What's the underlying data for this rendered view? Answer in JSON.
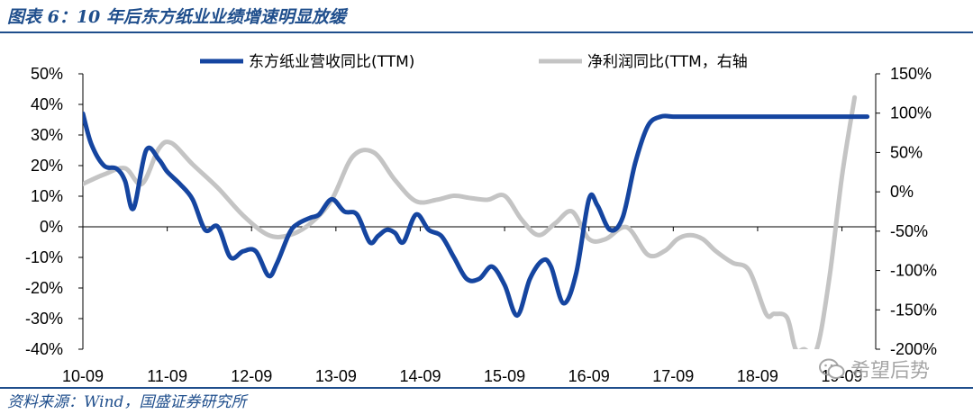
{
  "figure": {
    "title": "图表 6：10 年后东方纸业业绩增速明显放缓",
    "source": "资料来源：Wind，国盛证券研究所",
    "watermark": "希望后势"
  },
  "chart_data": {
    "type": "line",
    "title": "",
    "x_tick_labels": [
      "10-09",
      "11-09",
      "12-09",
      "13-09",
      "14-09",
      "15-09",
      "16-09",
      "17-09",
      "18-09",
      "19-09"
    ],
    "left_axis": {
      "ticks": [
        "50%",
        "40%",
        "30%",
        "20%",
        "10%",
        "0%",
        "-10%",
        "-20%",
        "-30%",
        "-40%"
      ],
      "ylim": [
        -40,
        50
      ]
    },
    "right_axis": {
      "ticks": [
        "150%",
        "100%",
        "50%",
        "0%",
        "-50%",
        "-100%",
        "-150%",
        "-200%"
      ],
      "ylim": [
        -200,
        150
      ]
    },
    "legend_position": "top-center",
    "colors": {
      "revenue": "#1545a0",
      "profit": "#c4c4c4"
    },
    "series": [
      {
        "name": "东方纸业营收同比(TTM)",
        "axis": "left",
        "x": [
          0,
          0.1,
          0.25,
          0.4,
          0.5,
          0.6,
          0.75,
          0.9,
          1.0,
          1.15,
          1.3,
          1.45,
          1.6,
          1.75,
          1.9,
          2.05,
          2.2,
          2.3,
          2.45,
          2.55,
          2.7,
          2.8,
          2.95,
          3.1,
          3.25,
          3.4,
          3.5,
          3.6,
          3.7,
          3.8,
          3.95,
          4.1,
          4.25,
          4.4,
          4.55,
          4.7,
          4.85,
          5.0,
          5.15,
          5.3,
          5.45,
          5.55,
          5.7,
          5.85,
          6.0,
          6.1,
          6.25,
          6.4,
          6.55,
          6.7,
          6.85,
          7.0,
          7.15,
          7.25,
          7.4,
          7.5,
          7.65,
          7.75,
          7.9,
          8.0,
          8.1,
          8.2,
          8.35,
          8.45,
          8.55,
          8.65,
          8.75,
          8.85,
          9.0,
          9.15,
          9.3
        ],
        "values": [
          37,
          27,
          20,
          19,
          15,
          6,
          25,
          22,
          18,
          14,
          9,
          -1,
          0,
          -10,
          -8,
          -8,
          -16,
          -12,
          -2,
          1,
          3,
          4,
          9,
          5,
          4,
          -5,
          -3,
          -1,
          -2,
          -5,
          4,
          -1,
          -3,
          -10,
          -17,
          -17,
          -13,
          -19,
          -29,
          -17,
          -11,
          -13,
          -25,
          -15,
          9,
          7,
          -1,
          3,
          21,
          33,
          36,
          36,
          36,
          36,
          36,
          36,
          36,
          36,
          36,
          36,
          36,
          36,
          36,
          36,
          36,
          36,
          36,
          36,
          36,
          36,
          36
        ]
      },
      {
        "name": "净利润同比(TTM，右轴",
        "axis": "right",
        "x": [
          0,
          0.25,
          0.5,
          0.7,
          0.9,
          1.05,
          1.3,
          1.6,
          1.9,
          2.2,
          2.45,
          2.7,
          2.95,
          3.2,
          3.45,
          3.7,
          3.95,
          4.2,
          4.4,
          4.6,
          4.8,
          5.0,
          5.2,
          5.4,
          5.6,
          5.8,
          6.0,
          6.2,
          6.45,
          6.7,
          6.9,
          7.05,
          7.2,
          7.35,
          7.5,
          7.7,
          7.9,
          8.1,
          8.2,
          8.35,
          8.45,
          8.55,
          8.7,
          8.85,
          9.0,
          9.15
        ],
        "values": [
          10,
          22,
          30,
          10,
          55,
          62,
          35,
          5,
          -30,
          -55,
          -55,
          -40,
          -10,
          45,
          50,
          15,
          -12,
          -10,
          -5,
          -8,
          -10,
          -5,
          -35,
          -55,
          -40,
          -25,
          -60,
          -60,
          -45,
          -80,
          -75,
          -60,
          -55,
          -60,
          -75,
          -90,
          -100,
          -155,
          -155,
          -160,
          -200,
          -200,
          -200,
          -110,
          20,
          120
        ]
      }
    ]
  }
}
